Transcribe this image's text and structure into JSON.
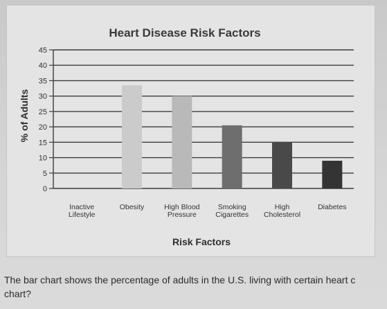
{
  "chart_data": {
    "type": "bar",
    "title": "Heart Disease Risk Factors",
    "xlabel": "Risk Factors",
    "ylabel": "% of Adults",
    "ylim": [
      0,
      45
    ],
    "yticks": [
      "0",
      "5",
      "10",
      "15",
      "20",
      "25",
      "30",
      "35",
      "40",
      "45"
    ],
    "categories": [
      [
        "Inactive",
        "Lifestyle"
      ],
      [
        "Obesity"
      ],
      [
        "High Blood",
        "Pressure"
      ],
      [
        "Smoking",
        "Cigarettes"
      ],
      [
        "High",
        "Cholesterol"
      ],
      [
        "Diabetes"
      ]
    ],
    "values": [
      0,
      33.5,
      30,
      20.5,
      15,
      9
    ],
    "bar_colors": [
      "#e4e4e4",
      "#cbcbcb",
      "#b9b9b9",
      "#6e6e6e",
      "#494949",
      "#343434"
    ],
    "grid": true
  },
  "caption": {
    "line1": "The bar chart shows the percentage of adults in the U.S. living with certain heart c",
    "line2": "chart?"
  }
}
